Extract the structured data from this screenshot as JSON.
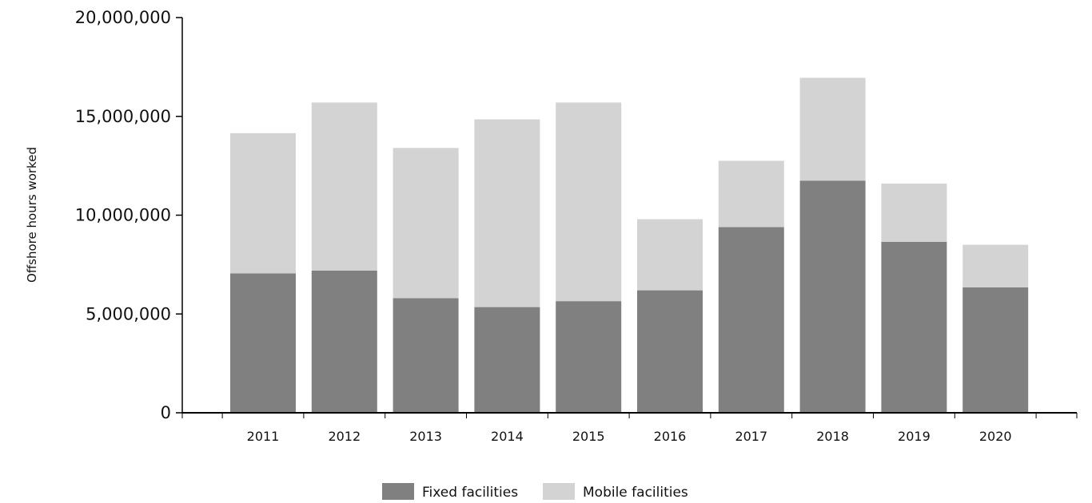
{
  "chart_data": {
    "type": "bar",
    "stacked": true,
    "title": "",
    "xlabel": "",
    "ylabel": "Offshore hours worked",
    "ylim": [
      0,
      20000000
    ],
    "yticks": [
      0,
      5000000,
      10000000,
      15000000,
      20000000
    ],
    "ytick_labels": [
      "0",
      "5,000,000",
      "10,000,000",
      "15,000,000",
      "20,000,000"
    ],
    "categories": [
      "2011",
      "2012",
      "2013",
      "2014",
      "2015",
      "2016",
      "2017",
      "2018",
      "2019",
      "2020"
    ],
    "series": [
      {
        "name": "Fixed facilities",
        "color": "#808080",
        "values": [
          7050000,
          7200000,
          5800000,
          5350000,
          5650000,
          6200000,
          9400000,
          11750000,
          8650000,
          6350000
        ]
      },
      {
        "name": "Mobile facilities",
        "color": "#d3d3d3",
        "values": [
          7100000,
          8500000,
          7600000,
          9500000,
          10050000,
          3600000,
          3350000,
          5200000,
          2950000,
          2150000
        ]
      }
    ],
    "grid": false,
    "legend_position": "bottom-center"
  }
}
